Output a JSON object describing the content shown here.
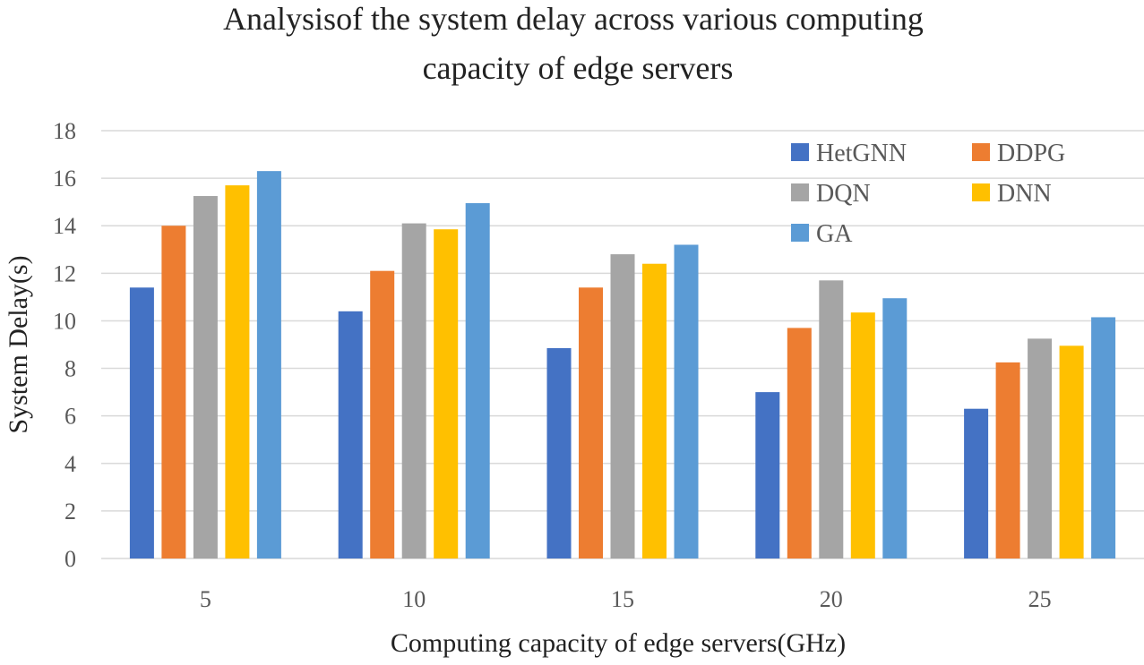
{
  "chart_data": {
    "type": "bar",
    "title_lines": [
      "Analysisof the  system delay across various computing",
      "capacity of edge servers"
    ],
    "xlabel": "Computing capacity of edge servers(GHz)",
    "ylabel": "System Delay(s)",
    "categories": [
      "5",
      "10",
      "15",
      "20",
      "25"
    ],
    "ylim": [
      0,
      18
    ],
    "yticks": [
      "0",
      "2",
      "4",
      "6",
      "8",
      "10",
      "12",
      "14",
      "16",
      "18"
    ],
    "grid": true,
    "legend_position": "top-right",
    "series": [
      {
        "name": "HetGNN",
        "color": "#4472C4",
        "values": [
          11.4,
          10.4,
          8.85,
          7.0,
          6.3
        ]
      },
      {
        "name": "DDPG",
        "color": "#ED7D31",
        "values": [
          14.0,
          12.1,
          11.4,
          9.7,
          8.25
        ]
      },
      {
        "name": "DQN",
        "color": "#A5A5A5",
        "values": [
          15.25,
          14.1,
          12.8,
          11.7,
          9.25
        ]
      },
      {
        "name": "DNN",
        "color": "#FFC000",
        "values": [
          15.7,
          13.85,
          12.4,
          10.35,
          8.95
        ]
      },
      {
        "name": "GA",
        "color": "#5B9BD5",
        "values": [
          16.3,
          14.95,
          13.2,
          10.95,
          10.15
        ]
      }
    ]
  }
}
